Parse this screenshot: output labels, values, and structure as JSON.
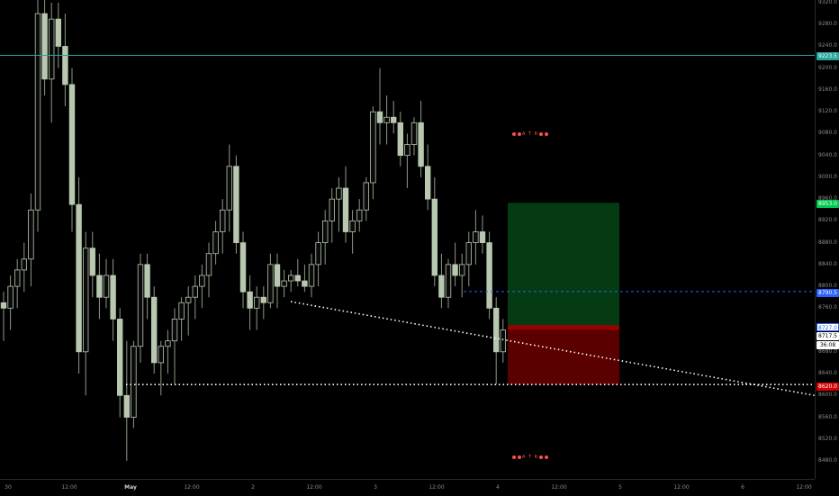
{
  "price_axis": {
    "ticks": [
      "9320.0",
      "9280.0",
      "9240.0",
      "9200.0",
      "9160.0",
      "9120.0",
      "9080.0",
      "9040.0",
      "9000.0",
      "8960.0",
      "8920.0",
      "8880.0",
      "8840.0",
      "8800.0",
      "8760.0",
      "8720.0",
      "8680.0",
      "8640.0",
      "8600.0",
      "8560.0",
      "8520.0",
      "8480.0"
    ],
    "badges": {
      "cyan_line": "9223.5",
      "target": "8953.0",
      "blue_dashed": "8790.5",
      "current_price": "8727.0",
      "last_price": "8717.5",
      "countdown": "36:08",
      "stop": "8620.0"
    },
    "badge_colors": {
      "cyan_line": "#26a69a",
      "target": "#00c853",
      "blue_dashed": "#2962ff",
      "current_price": "#2962ff",
      "last_price": "#ffffff",
      "countdown": "#ffffff",
      "stop": "#d50000"
    }
  },
  "time_axis": {
    "ticks": [
      {
        "label": "30",
        "bold": false
      },
      {
        "label": "12:00",
        "bold": false
      },
      {
        "label": "May",
        "bold": true
      },
      {
        "label": "12:00",
        "bold": false
      },
      {
        "label": "2",
        "bold": false
      },
      {
        "label": "12:00",
        "bold": false
      },
      {
        "label": "3",
        "bold": false
      },
      {
        "label": "12:00",
        "bold": false
      },
      {
        "label": "4",
        "bold": false
      },
      {
        "label": "12:00",
        "bold": false
      },
      {
        "label": "5",
        "bold": false
      },
      {
        "label": "12:00",
        "bold": false
      },
      {
        "label": "6",
        "bold": false
      },
      {
        "label": "12:00",
        "bold": false
      }
    ]
  },
  "indicators": {
    "atr_label": "A T R"
  },
  "position_tool": {
    "entry": 8727.0,
    "target": 8953.0,
    "stop": 8620.0,
    "profit_color": "#053b12",
    "loss_color": "#5a0000",
    "entry_color": "#9b0000"
  },
  "lines": {
    "horizontal_cyan": 9223.5,
    "horizontal_blue_dashed": 8790.5,
    "dotted_support": 8620.0
  },
  "colors": {
    "background": "#000000",
    "candle": "#b8c8b0",
    "wick": "#8a9a84",
    "cyan": "#26a69a",
    "blue": "#2962ff"
  },
  "chart_data": {
    "type": "candlestick",
    "x_range": [
      "30",
      "6"
    ],
    "ylim": [
      8460,
      9330
    ],
    "ohlc": [
      [
        8770,
        8790,
        8700,
        8760
      ],
      [
        8760,
        8820,
        8720,
        8800
      ],
      [
        8800,
        8850,
        8760,
        8830
      ],
      [
        8830,
        8880,
        8790,
        8850
      ],
      [
        8850,
        8970,
        8800,
        8940
      ],
      [
        8940,
        9330,
        8900,
        9300
      ],
      [
        9300,
        9330,
        9150,
        9180
      ],
      [
        9180,
        9320,
        9100,
        9290
      ],
      [
        9290,
        9320,
        9200,
        9240
      ],
      [
        9240,
        9300,
        9130,
        9170
      ],
      [
        9170,
        9200,
        8900,
        8950
      ],
      [
        8950,
        9000,
        8640,
        8680
      ],
      [
        8680,
        8900,
        8600,
        8870
      ],
      [
        8870,
        8900,
        8780,
        8820
      ],
      [
        8820,
        8860,
        8740,
        8780
      ],
      [
        8780,
        8850,
        8760,
        8820
      ],
      [
        8820,
        8850,
        8700,
        8740
      ],
      [
        8740,
        8760,
        8560,
        8600
      ],
      [
        8600,
        8700,
        8480,
        8560
      ],
      [
        8560,
        8700,
        8540,
        8690
      ],
      [
        8690,
        8860,
        8660,
        8840
      ],
      [
        8840,
        8860,
        8740,
        8780
      ],
      [
        8780,
        8800,
        8640,
        8660
      ],
      [
        8660,
        8700,
        8600,
        8690
      ],
      [
        8690,
        8720,
        8640,
        8700
      ],
      [
        8700,
        8760,
        8620,
        8740
      ],
      [
        8740,
        8780,
        8700,
        8770
      ],
      [
        8770,
        8800,
        8710,
        8780
      ],
      [
        8780,
        8820,
        8740,
        8800
      ],
      [
        8800,
        8840,
        8760,
        8820
      ],
      [
        8820,
        8880,
        8780,
        8860
      ],
      [
        8860,
        8920,
        8840,
        8900
      ],
      [
        8900,
        8960,
        8860,
        8940
      ],
      [
        8940,
        9060,
        8900,
        9020
      ],
      [
        9020,
        9040,
        8860,
        8880
      ],
      [
        8880,
        8900,
        8760,
        8790
      ],
      [
        8790,
        8820,
        8720,
        8760
      ],
      [
        8760,
        8800,
        8720,
        8780
      ],
      [
        8780,
        8800,
        8740,
        8770
      ],
      [
        8770,
        8860,
        8760,
        8840
      ],
      [
        8840,
        8860,
        8760,
        8800
      ],
      [
        8800,
        8830,
        8780,
        8810
      ],
      [
        8810,
        8830,
        8790,
        8820
      ],
      [
        8820,
        8850,
        8800,
        8810
      ],
      [
        8810,
        8840,
        8790,
        8800
      ],
      [
        8800,
        8860,
        8780,
        8840
      ],
      [
        8840,
        8900,
        8800,
        8880
      ],
      [
        8880,
        8940,
        8840,
        8920
      ],
      [
        8920,
        8980,
        8880,
        8960
      ],
      [
        8960,
        9000,
        8900,
        8980
      ],
      [
        8980,
        9020,
        8880,
        8900
      ],
      [
        8900,
        8940,
        8860,
        8920
      ],
      [
        8920,
        8960,
        8900,
        8940
      ],
      [
        8940,
        9000,
        8920,
        8990
      ],
      [
        8990,
        9130,
        8960,
        9120
      ],
      [
        9120,
        9200,
        9060,
        9100
      ],
      [
        9100,
        9150,
        9060,
        9110
      ],
      [
        9110,
        9140,
        9080,
        9100
      ],
      [
        9100,
        9120,
        9020,
        9040
      ],
      [
        9040,
        9080,
        8980,
        9060
      ],
      [
        9060,
        9110,
        9040,
        9100
      ],
      [
        9100,
        9140,
        9000,
        9020
      ],
      [
        9020,
        9060,
        8940,
        8960
      ],
      [
        8960,
        9000,
        8800,
        8820
      ],
      [
        8820,
        8860,
        8760,
        8780
      ],
      [
        8780,
        8850,
        8760,
        8840
      ],
      [
        8840,
        8880,
        8800,
        8820
      ],
      [
        8820,
        8860,
        8780,
        8840
      ],
      [
        8840,
        8900,
        8800,
        8880
      ],
      [
        8880,
        8940,
        8840,
        8900
      ],
      [
        8900,
        8930,
        8860,
        8880
      ],
      [
        8880,
        8900,
        8740,
        8760
      ],
      [
        8760,
        8780,
        8620,
        8680
      ],
      [
        8680,
        8740,
        8660,
        8720
      ]
    ]
  }
}
